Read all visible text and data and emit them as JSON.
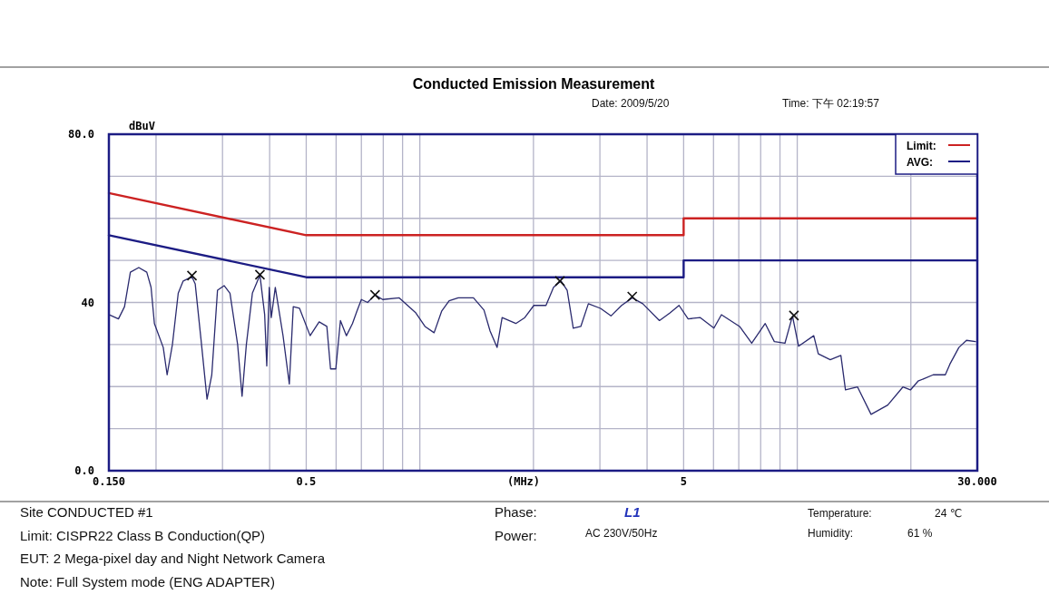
{
  "chart_data": {
    "type": "line",
    "title": "Conducted Emission Measurement",
    "xlabel": "(MHz)",
    "ylabel": "dBuV",
    "annotations": [
      "Date: 2009/5/20",
      "Time: 下午 02:19:57",
      "Site CONDUCTED #1",
      "Limit: CISPR22 Class B Conduction(QP)",
      "EUT: 2 Mega-pixel day and Night Network Camera",
      "Note: Full System mode (ENG ADAPTER)",
      "Phase:",
      "L1",
      "Power:",
      "AC 230V/50Hz",
      "Temperature:",
      "24 ℃",
      "Humidity:",
      "61 %"
    ],
    "log": "x",
    "xlim": [
      0.15,
      30
    ],
    "ylim": [
      0,
      80
    ],
    "xticks": [
      {
        "value": 0.15,
        "label": "0.150"
      },
      {
        "value": 0.2,
        "label": null
      },
      {
        "value": 0.3,
        "label": null
      },
      {
        "value": 0.4,
        "label": null
      },
      {
        "value": 0.5,
        "label": "0.5"
      },
      {
        "value": 0.6,
        "label": null
      },
      {
        "value": 0.7,
        "label": null
      },
      {
        "value": 0.8,
        "label": null
      },
      {
        "value": 0.9,
        "label": null
      },
      {
        "value": 1,
        "label": null
      },
      {
        "value": 2,
        "label": null
      },
      {
        "value": 3,
        "label": null
      },
      {
        "value": 4,
        "label": null
      },
      {
        "value": 5,
        "label": "5"
      },
      {
        "value": 6,
        "label": null
      },
      {
        "value": 7,
        "label": null
      },
      {
        "value": 8,
        "label": null
      },
      {
        "value": 9,
        "label": null
      },
      {
        "value": 10,
        "label": null
      },
      {
        "value": 20,
        "label": null
      },
      {
        "value": 30,
        "label": "30.000"
      }
    ],
    "yticks": [
      {
        "value": 0,
        "label": "0.0"
      },
      {
        "value": 10,
        "label": null
      },
      {
        "value": 20,
        "label": null
      },
      {
        "value": 30,
        "label": null
      },
      40,
      {
        "value": 50,
        "label": null
      },
      {
        "value": 60,
        "label": null
      },
      {
        "value": 70,
        "label": null
      },
      {
        "value": 80,
        "label": "80.0"
      }
    ],
    "grid": true,
    "legend": "top right",
    "series": [
      {
        "name": "Limit:",
        "color": "#cc2222",
        "x": [
          0.15,
          0.5,
          5,
          5,
          30
        ],
        "values": [
          66,
          56,
          56,
          60,
          60
        ]
      },
      {
        "name": "AVG:",
        "color": "#1c1c84",
        "x": [
          0.15,
          0.5,
          5,
          5,
          30
        ],
        "values": [
          56,
          46,
          46,
          50,
          50
        ]
      },
      {
        "color": "#2a2a6e",
        "x": [
          0.15,
          0.159,
          0.165,
          0.171,
          0.18,
          0.189,
          0.194,
          0.198,
          0.209,
          0.214,
          0.221,
          0.229,
          0.236,
          0.249,
          0.254,
          0.263,
          0.273,
          0.281,
          0.291,
          0.303,
          0.314,
          0.329,
          0.338,
          0.347,
          0.36,
          0.377,
          0.388,
          0.393,
          0.399,
          0.404,
          0.414,
          0.434,
          0.451,
          0.462,
          0.48,
          0.512,
          0.541,
          0.567,
          0.58,
          0.599,
          0.616,
          0.639,
          0.663,
          0.681,
          0.7,
          0.727,
          0.761,
          0.797,
          0.882,
          0.976,
          1.032,
          1.091,
          1.142,
          1.196,
          1.264,
          1.387,
          1.479,
          1.535,
          1.602,
          1.652,
          1.796,
          1.897,
          2.005,
          2.159,
          2.261,
          2.367,
          2.457,
          2.55,
          2.67,
          2.796,
          3.011,
          3.21,
          3.425,
          3.654,
          3.896,
          4.314,
          4.601,
          4.862,
          5.139,
          5.535,
          6.015,
          6.297,
          7.035,
          7.574,
          8.225,
          8.694,
          9.276,
          9.714,
          10.08,
          11.06,
          11.37,
          12.23,
          13.05,
          13.42,
          14.45,
          15.69,
          17.37,
          19.05,
          19.95,
          20.9,
          22.92,
          24.68,
          25.37,
          26.81,
          28.08,
          29.67
        ],
        "values": [
          37.1,
          36.1,
          39.0,
          47.2,
          48.3,
          47.2,
          43.6,
          35.0,
          29.3,
          22.8,
          30.0,
          42.2,
          45.1,
          46.1,
          44.4,
          31.4,
          17.0,
          22.8,
          42.9,
          44.0,
          42.2,
          30.0,
          17.7,
          30.0,
          42.2,
          46.5,
          37.1,
          24.9,
          43.6,
          36.4,
          43.6,
          32.1,
          20.6,
          39.0,
          38.6,
          32.1,
          35.4,
          34.3,
          24.2,
          24.2,
          35.7,
          32.1,
          35.0,
          37.9,
          40.7,
          40.0,
          41.8,
          40.7,
          41.1,
          37.5,
          34.3,
          32.8,
          37.9,
          40.4,
          41.1,
          41.1,
          38.2,
          33.2,
          29.3,
          36.4,
          35.0,
          36.4,
          39.3,
          39.3,
          43.6,
          45.1,
          42.9,
          33.9,
          34.3,
          39.7,
          38.6,
          36.8,
          39.3,
          41.1,
          39.7,
          35.7,
          37.5,
          39.3,
          36.1,
          36.4,
          33.9,
          37.1,
          34.3,
          30.3,
          35.0,
          30.7,
          30.3,
          36.8,
          29.6,
          32.1,
          27.8,
          26.4,
          27.4,
          19.2,
          19.9,
          13.4,
          15.6,
          19.9,
          19.2,
          21.3,
          22.8,
          22.8,
          25.3,
          29.3,
          31.0,
          30.7
        ]
      },
      {
        "type": "scatter",
        "marker": "cross",
        "color": "#111111",
        "x": [
          0.249,
          0.377,
          0.761,
          2.35,
          3.654,
          9.8
        ],
        "values": [
          46.4,
          46.6,
          41.8,
          45.1,
          41.4,
          36.9
        ]
      }
    ]
  }
}
